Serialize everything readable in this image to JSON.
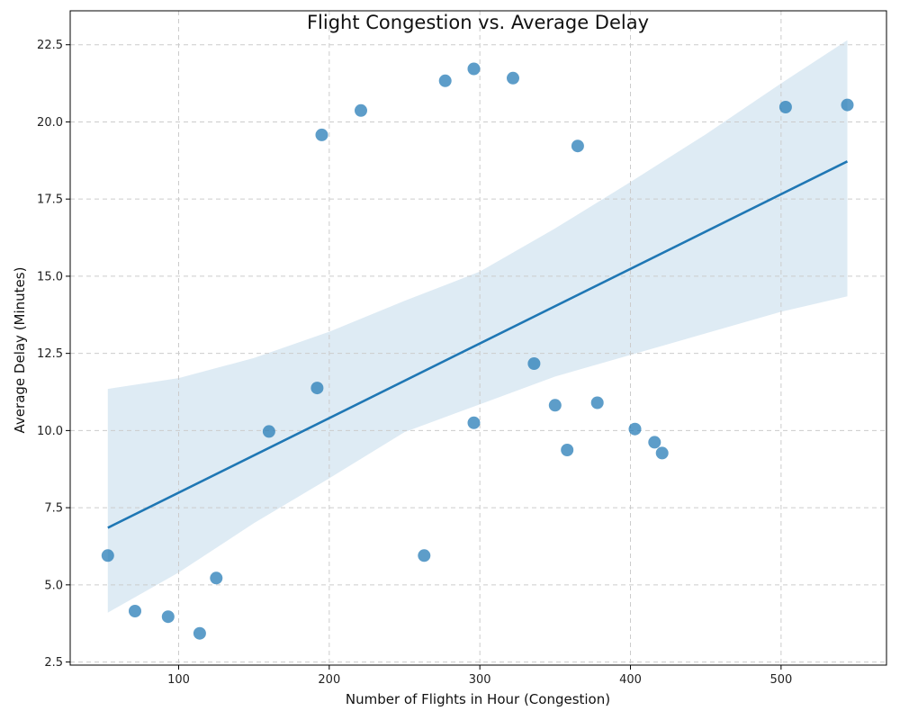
{
  "chart_data": {
    "type": "scatter",
    "title": "Flight Congestion vs. Average Delay",
    "xlabel": "Number of Flights in Hour (Congestion)",
    "ylabel": "Average Delay (Minutes)",
    "xlim": [
      28,
      570
    ],
    "ylim": [
      2.4,
      23.6
    ],
    "x_ticks": [
      100,
      200,
      300,
      400,
      500
    ],
    "y_ticks": [
      2.5,
      5.0,
      7.5,
      10.0,
      12.5,
      15.0,
      17.5,
      20.0,
      22.5
    ],
    "x_tick_labels": [
      "100",
      "200",
      "300",
      "400",
      "500"
    ],
    "y_tick_labels": [
      "2.5",
      "5.0",
      "7.5",
      "10.0",
      "12.5",
      "15.0",
      "17.5",
      "20.0",
      "22.5"
    ],
    "grid": true,
    "series": [
      {
        "points": [
          {
            "x": 53,
            "y": 5.95
          },
          {
            "x": 71,
            "y": 4.15
          },
          {
            "x": 93,
            "y": 3.97
          },
          {
            "x": 114,
            "y": 3.43
          },
          {
            "x": 125,
            "y": 5.22
          },
          {
            "x": 160,
            "y": 9.97
          },
          {
            "x": 192,
            "y": 11.38
          },
          {
            "x": 195,
            "y": 19.58
          },
          {
            "x": 221,
            "y": 20.37
          },
          {
            "x": 263,
            "y": 5.95
          },
          {
            "x": 277,
            "y": 21.33
          },
          {
            "x": 296,
            "y": 21.72
          },
          {
            "x": 296,
            "y": 10.25
          },
          {
            "x": 322,
            "y": 21.42
          },
          {
            "x": 336,
            "y": 12.17
          },
          {
            "x": 350,
            "y": 10.82
          },
          {
            "x": 358,
            "y": 9.37
          },
          {
            "x": 365,
            "y": 19.22
          },
          {
            "x": 378,
            "y": 10.9
          },
          {
            "x": 403,
            "y": 10.05
          },
          {
            "x": 416,
            "y": 9.62
          },
          {
            "x": 421,
            "y": 9.27
          },
          {
            "x": 503,
            "y": 20.48
          },
          {
            "x": 544,
            "y": 20.55
          }
        ]
      }
    ],
    "regression": {
      "x": [
        53,
        544
      ],
      "y": [
        6.85,
        18.72
      ]
    },
    "confidence_band": {
      "x": [
        53,
        100,
        150,
        200,
        250,
        300,
        350,
        400,
        450,
        500,
        544
      ],
      "upper": [
        11.35,
        11.7,
        12.35,
        13.2,
        14.2,
        15.15,
        16.55,
        18.05,
        19.6,
        21.25,
        22.65
      ],
      "lower": [
        4.1,
        5.4,
        7.0,
        8.45,
        9.95,
        10.85,
        11.75,
        12.45,
        13.15,
        13.85,
        14.35
      ]
    },
    "colors": {
      "points": "#1f77b4",
      "line": "#1f77b4",
      "band": "#1f77b4"
    }
  }
}
